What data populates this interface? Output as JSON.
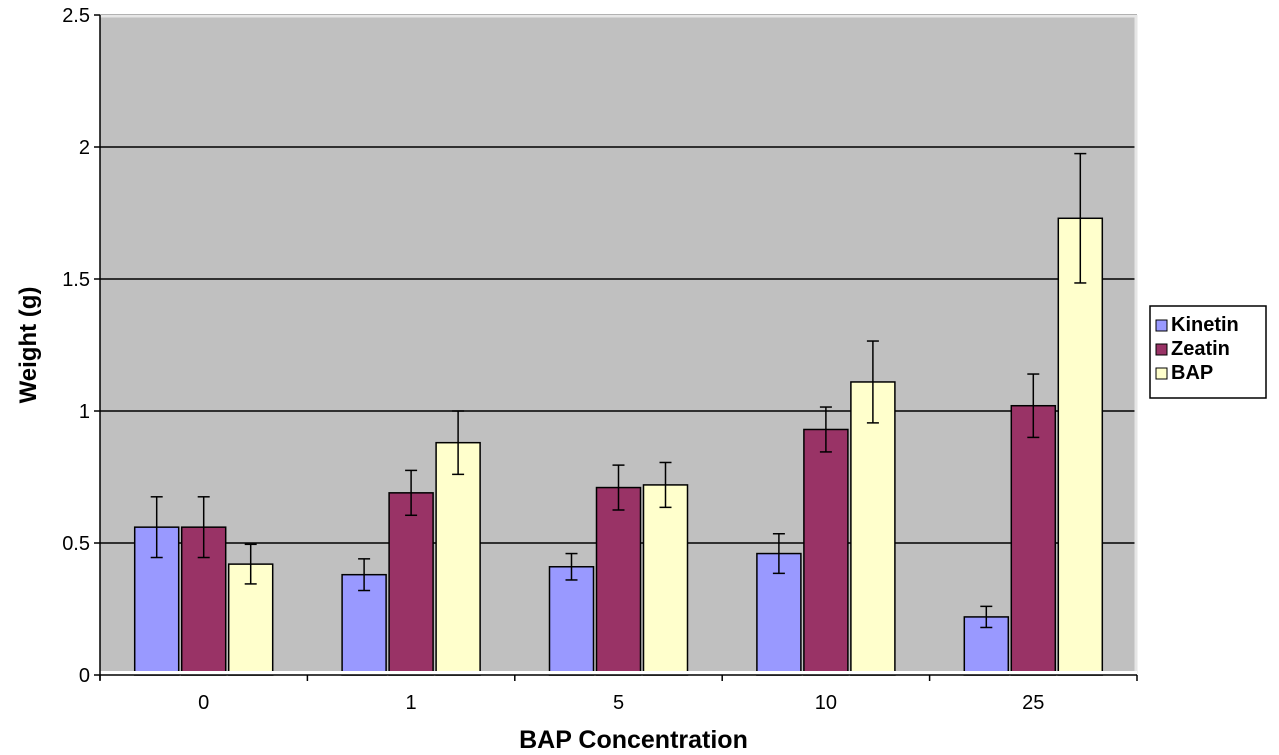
{
  "chart_data": {
    "type": "bar",
    "title": "",
    "xlabel": "BAP Concentration",
    "ylabel": "Weight (g)",
    "categories": [
      "0",
      "1",
      "5",
      "10",
      "25"
    ],
    "ylim": [
      0,
      2.5
    ],
    "yticks": [
      0,
      0.5,
      1,
      1.5,
      2,
      2.5
    ],
    "ytick_labels": [
      "0",
      "0.5",
      "1",
      "1.5",
      "2",
      "2.5"
    ],
    "grid": true,
    "legend_position": "right",
    "series": [
      {
        "name": "Kinetin",
        "color": "#9999FF",
        "values": [
          0.56,
          0.38,
          0.41,
          0.46,
          0.22
        ],
        "errors": [
          0.115,
          0.06,
          0.05,
          0.075,
          0.04
        ]
      },
      {
        "name": "Zeatin",
        "color": "#993366",
        "values": [
          0.56,
          0.69,
          0.71,
          0.93,
          1.02
        ],
        "errors": [
          0.115,
          0.085,
          0.085,
          0.085,
          0.12
        ]
      },
      {
        "name": "BAP",
        "color": "#FFFFCC",
        "values": [
          0.42,
          0.88,
          0.72,
          1.11,
          1.73
        ],
        "errors": [
          0.075,
          0.12,
          0.085,
          0.155,
          0.245
        ]
      }
    ],
    "plot_background": "#C0C0C0",
    "gridline_color": "#000000"
  }
}
